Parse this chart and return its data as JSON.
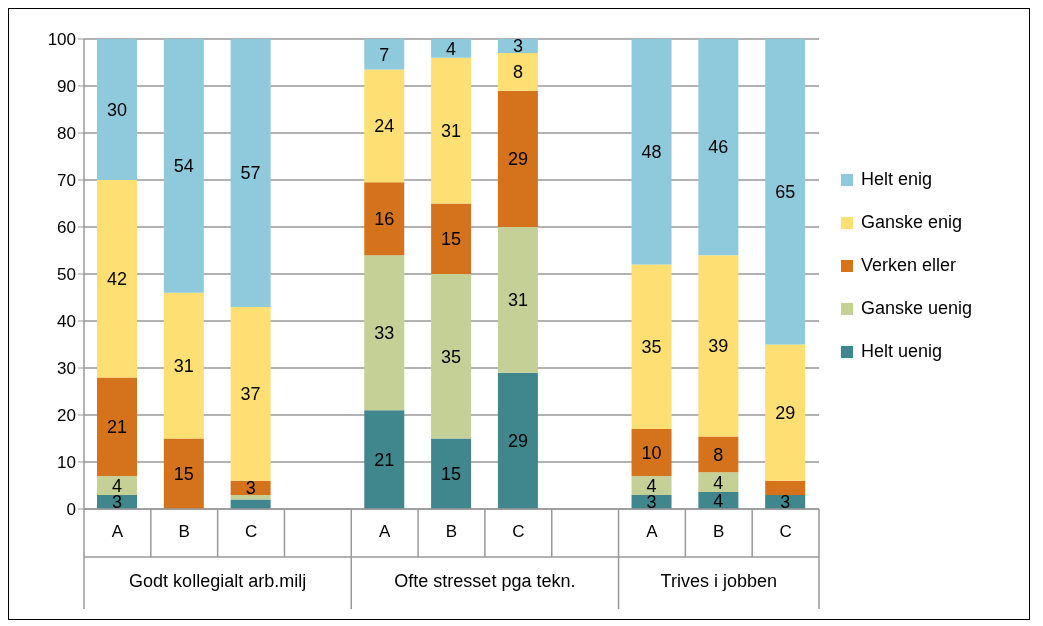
{
  "chart_data": {
    "type": "bar",
    "stacked": true,
    "categories": [
      "A",
      "B",
      "C",
      null,
      "A",
      "B",
      "C",
      null,
      "A",
      "B",
      "C"
    ],
    "annotations": [
      "Godt kollegialt arb.milj",
      "Ofte stresset pga tekn.",
      "Trives i jobben"
    ],
    "series": [
      {
        "name": "Helt uenig",
        "color": "#3f878c",
        "values": [
          3,
          0,
          2,
          null,
          21,
          15,
          29,
          null,
          3,
          3.6,
          3
        ],
        "value_labels": [
          "3",
          null,
          null,
          null,
          "21",
          "15",
          "29",
          null,
          "3",
          "4",
          "3"
        ]
      },
      {
        "name": "Ganske uenig",
        "color": "#c4d096",
        "values": [
          4,
          0,
          1,
          null,
          33,
          35,
          31,
          null,
          4,
          4.2,
          0
        ],
        "value_labels": [
          "4",
          null,
          null,
          null,
          "33",
          "35",
          "31",
          null,
          "4",
          "4",
          null
        ]
      },
      {
        "name": "Verken eller",
        "color": "#d5731d",
        "values": [
          21,
          15,
          3,
          null,
          15.5,
          15,
          29,
          null,
          10,
          7.6,
          3
        ],
        "value_labels": [
          "21",
          "15",
          "3",
          null,
          "16",
          "15",
          "29",
          null,
          "10",
          "8",
          null
        ]
      },
      {
        "name": "Ganske enig",
        "color": "#fedf74",
        "values": [
          42,
          31,
          37,
          null,
          24,
          31,
          8,
          null,
          35,
          38.6,
          29
        ],
        "value_labels": [
          "42",
          "31",
          "37",
          null,
          "24",
          "31",
          "8",
          null,
          "35",
          "39",
          "29"
        ]
      },
      {
        "name": "Helt enig",
        "color": "#8ecadc",
        "values": [
          30,
          54,
          57,
          null,
          6.5,
          4,
          3,
          null,
          48,
          46,
          65
        ],
        "value_labels": [
          "30",
          "54",
          "57",
          null,
          "7",
          "4",
          "3",
          null,
          "48",
          "46",
          "65"
        ]
      }
    ],
    "ylim": [
      0,
      100
    ],
    "yticks": [
      0,
      10,
      20,
      30,
      40,
      50,
      60,
      70,
      80,
      90,
      100
    ],
    "grid": "y",
    "legend": "right"
  }
}
